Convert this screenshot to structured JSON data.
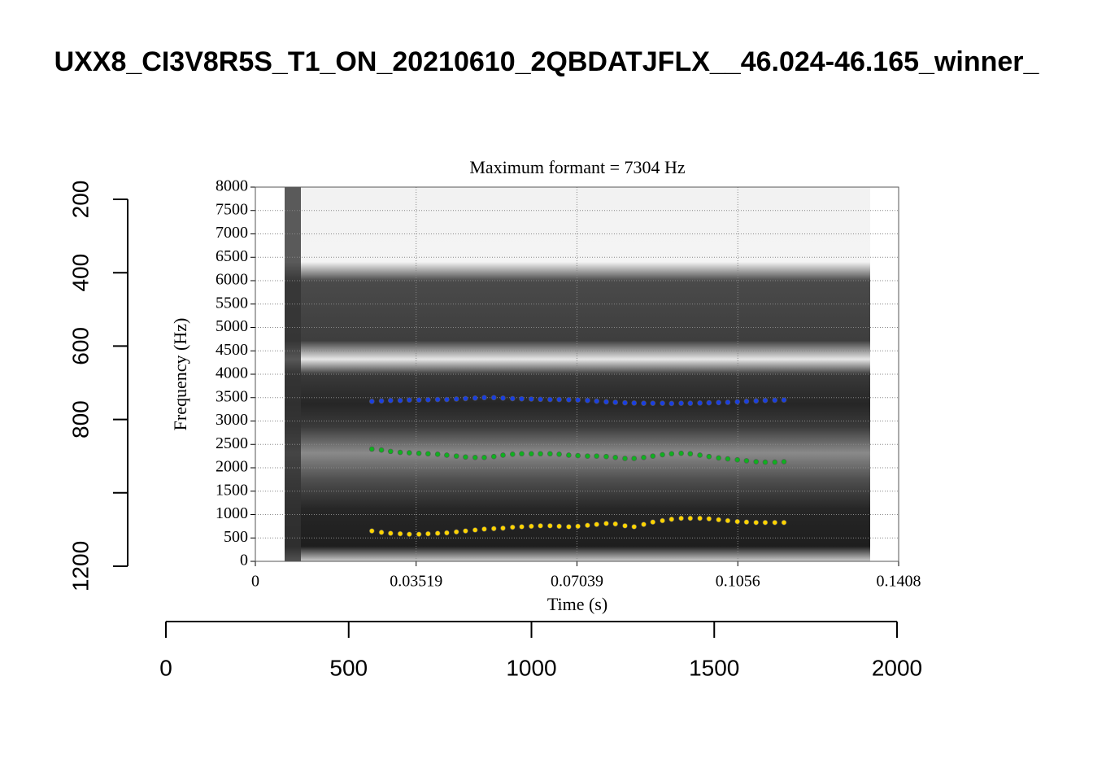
{
  "chart_data": [
    {
      "type": "axes",
      "title": "UXX8_CI3V8R5S_T1_ON_20210610_2QBDATJFLX__46.024-46.165_winner_",
      "xlim": [
        0,
        2000
      ],
      "xticks": [
        0,
        500,
        1000,
        1500,
        2000
      ],
      "ylim": [
        1200,
        200
      ],
      "yticks": [
        200,
        400,
        600,
        800,
        {
          "value": 1000,
          "label": null
        },
        1200
      ]
    },
    {
      "type": "scatter",
      "title": "Maximum formant = 7304 Hz",
      "xlabel": "Time (s)",
      "ylabel": "Frequency (Hz)",
      "xlim": [
        0,
        0.1408
      ],
      "xticks": [
        0,
        0.03519,
        0.07039,
        0.1056,
        0.1408
      ],
      "ylim": [
        0,
        8000
      ],
      "yticks": [
        0,
        500,
        1000,
        1500,
        2000,
        2500,
        3000,
        3500,
        4000,
        4500,
        5000,
        5500,
        6000,
        6500,
        7000,
        7500,
        8000
      ],
      "grid": true,
      "x": [
        0.0255,
        0.0276,
        0.0296,
        0.0317,
        0.0337,
        0.0358,
        0.0378,
        0.0399,
        0.0419,
        0.044,
        0.046,
        0.0481,
        0.0501,
        0.0522,
        0.0542,
        0.0563,
        0.0583,
        0.0604,
        0.0624,
        0.0645,
        0.0665,
        0.0686,
        0.0706,
        0.0727,
        0.0747,
        0.0768,
        0.0788,
        0.0809,
        0.0829,
        0.085,
        0.087,
        0.0891,
        0.0911,
        0.0932,
        0.0952,
        0.0973,
        0.0993,
        0.1014,
        0.1034,
        0.1055,
        0.1075,
        0.1096,
        0.1116,
        0.1137,
        0.1157
      ],
      "series": [
        {
          "color": "#1a3fe0",
          "values": [
            3420,
            3430,
            3440,
            3440,
            3450,
            3450,
            3455,
            3460,
            3460,
            3470,
            3480,
            3490,
            3500,
            3500,
            3490,
            3480,
            3475,
            3470,
            3465,
            3460,
            3460,
            3455,
            3450,
            3440,
            3425,
            3410,
            3400,
            3390,
            3385,
            3380,
            3380,
            3380,
            3375,
            3380,
            3380,
            3385,
            3390,
            3395,
            3400,
            3410,
            3420,
            3430,
            3440,
            3445,
            3450
          ]
        },
        {
          "color": "#10b020",
          "values": [
            2400,
            2380,
            2350,
            2330,
            2320,
            2310,
            2300,
            2290,
            2270,
            2250,
            2230,
            2220,
            2220,
            2240,
            2270,
            2290,
            2300,
            2300,
            2300,
            2300,
            2290,
            2270,
            2260,
            2250,
            2250,
            2240,
            2220,
            2200,
            2200,
            2220,
            2250,
            2280,
            2300,
            2310,
            2300,
            2270,
            2240,
            2210,
            2190,
            2170,
            2150,
            2130,
            2120,
            2120,
            2130
          ]
        },
        {
          "color": "#ffd400",
          "values": [
            650,
            620,
            600,
            590,
            580,
            580,
            590,
            600,
            610,
            630,
            650,
            670,
            690,
            700,
            710,
            730,
            740,
            750,
            760,
            760,
            750,
            740,
            750,
            770,
            790,
            810,
            800,
            760,
            740,
            790,
            840,
            870,
            900,
            920,
            920,
            920,
            910,
            890,
            870,
            850,
            840,
            830,
            830,
            830,
            830
          ]
        }
      ]
    }
  ]
}
